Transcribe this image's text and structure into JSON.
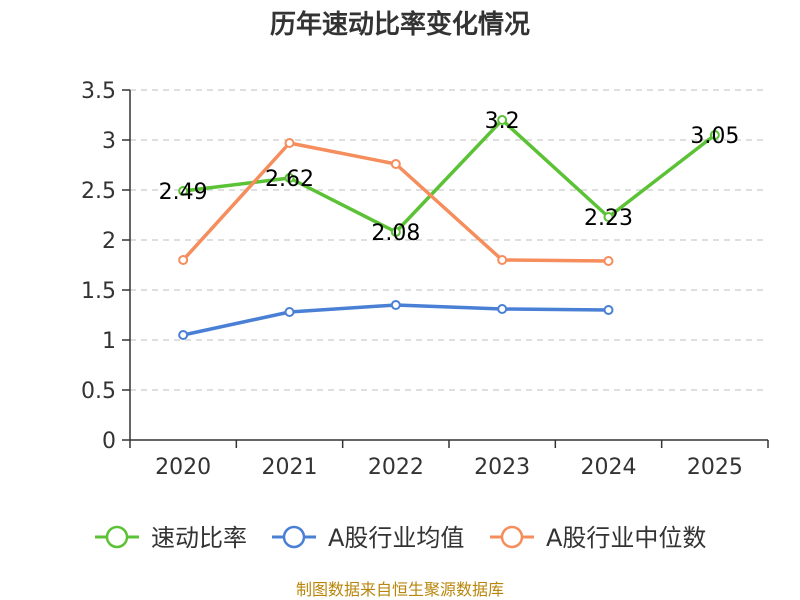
{
  "chart_data": {
    "type": "line",
    "title": "历年速动比率变化情况",
    "categories": [
      "2020",
      "2021",
      "2022",
      "2023",
      "2024",
      "2025"
    ],
    "ylim": [
      0,
      3.5
    ],
    "yticks": [
      "0",
      "0.5",
      "1",
      "1.5",
      "2",
      "2.5",
      "3",
      "3.5"
    ],
    "grid": true,
    "legend_position": "bottom",
    "series": [
      {
        "name": "速动比率",
        "color": "#5bc236",
        "values": [
          2.49,
          2.62,
          2.08,
          3.2,
          2.23,
          3.05
        ],
        "labels": [
          "2.49",
          "2.62",
          "2.08",
          "3.2",
          "2.23",
          "3.05"
        ]
      },
      {
        "name": "A股行业均值",
        "color": "#4a7fd6",
        "values": [
          1.05,
          1.28,
          1.35,
          1.31,
          1.3,
          null
        ]
      },
      {
        "name": "A股行业中位数",
        "color": "#f58d5c",
        "values": [
          1.8,
          2.97,
          2.76,
          1.8,
          1.79,
          null
        ]
      }
    ],
    "footer": "制图数据来自恒生聚源数据库"
  }
}
